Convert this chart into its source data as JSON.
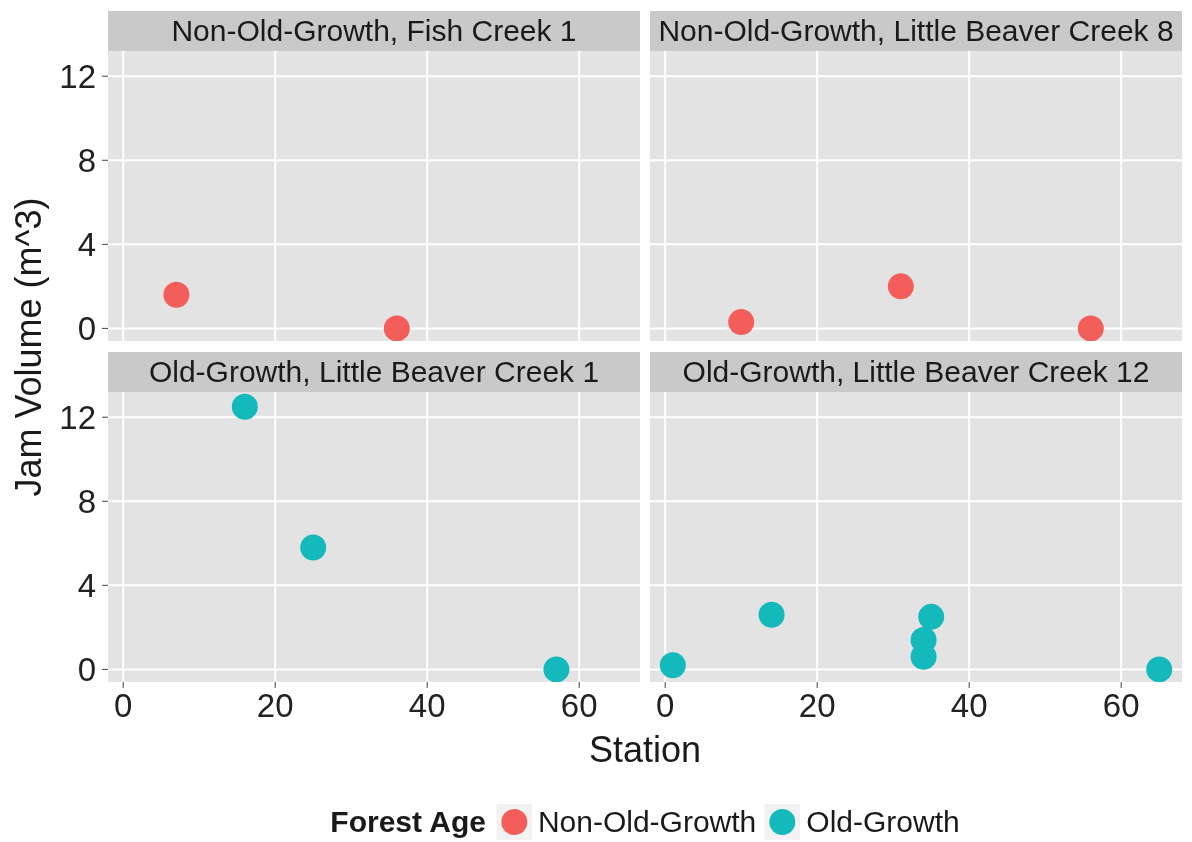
{
  "chart_data": [
    {
      "type": "scatter",
      "title": "Non-Old-Growth, Fish Creek 1",
      "xlabel": "Station",
      "ylabel": "Jam Volume (m^3)",
      "legend_title": "Forest Age",
      "legend": "bottom",
      "x": [
        7,
        36
      ],
      "series": [
        {
          "name": "Non-Old-Growth",
          "color": "#f35e5a",
          "values": [
            1.6,
            0
          ]
        }
      ],
      "xlim": [
        -2,
        68
      ],
      "ylim": [
        -0.6,
        13.2
      ],
      "xticks": [
        0,
        20,
        40,
        60
      ],
      "yticks": [
        0,
        4,
        8,
        12
      ],
      "grid": true,
      "marker": "circle",
      "tick_labels": "y"
    },
    {
      "type": "scatter",
      "title": "Non-Old-Growth, Little Beaver Creek 8",
      "x": [
        10,
        31,
        56
      ],
      "series": [
        {
          "name": "Non-Old-Growth",
          "color": "#f35e5a",
          "values": [
            0.3,
            2,
            0
          ]
        }
      ],
      "xlim": [
        -2,
        68
      ],
      "ylim": [
        -0.6,
        13.2
      ],
      "xticks": [
        0,
        20,
        40,
        60
      ],
      "yticks": [
        0,
        4,
        8,
        12
      ],
      "grid": true,
      "marker": "circle",
      "tick_labels": false
    },
    {
      "type": "scatter",
      "title": "Old-Growth, Little Beaver Creek 1",
      "x": [
        16,
        25,
        57
      ],
      "series": [
        {
          "name": "Old-Growth",
          "color": "#14b9bc",
          "values": [
            12.5,
            5.8,
            0
          ]
        }
      ],
      "xlim": [
        -2,
        68
      ],
      "ylim": [
        -0.6,
        13.2
      ],
      "xticks": [
        0,
        20,
        40,
        60
      ],
      "yticks": [
        0,
        4,
        8,
        12
      ],
      "grid": true,
      "marker": "circle"
    },
    {
      "type": "scatter",
      "title": "Old-Growth, Little Beaver Creek 12",
      "x": [
        1,
        14,
        35,
        34,
        34,
        65
      ],
      "series": [
        {
          "name": "Old-Growth",
          "color": "#14b9bc",
          "values": [
            0.2,
            2.6,
            2.5,
            1.4,
            0.6,
            0
          ]
        }
      ],
      "xlim": [
        -2,
        68
      ],
      "ylim": [
        -0.6,
        13.2
      ],
      "xticks": [
        0,
        20,
        40,
        60
      ],
      "yticks": [
        0,
        4,
        8,
        12
      ],
      "grid": true,
      "marker": "circle",
      "tick_labels": "x"
    }
  ]
}
